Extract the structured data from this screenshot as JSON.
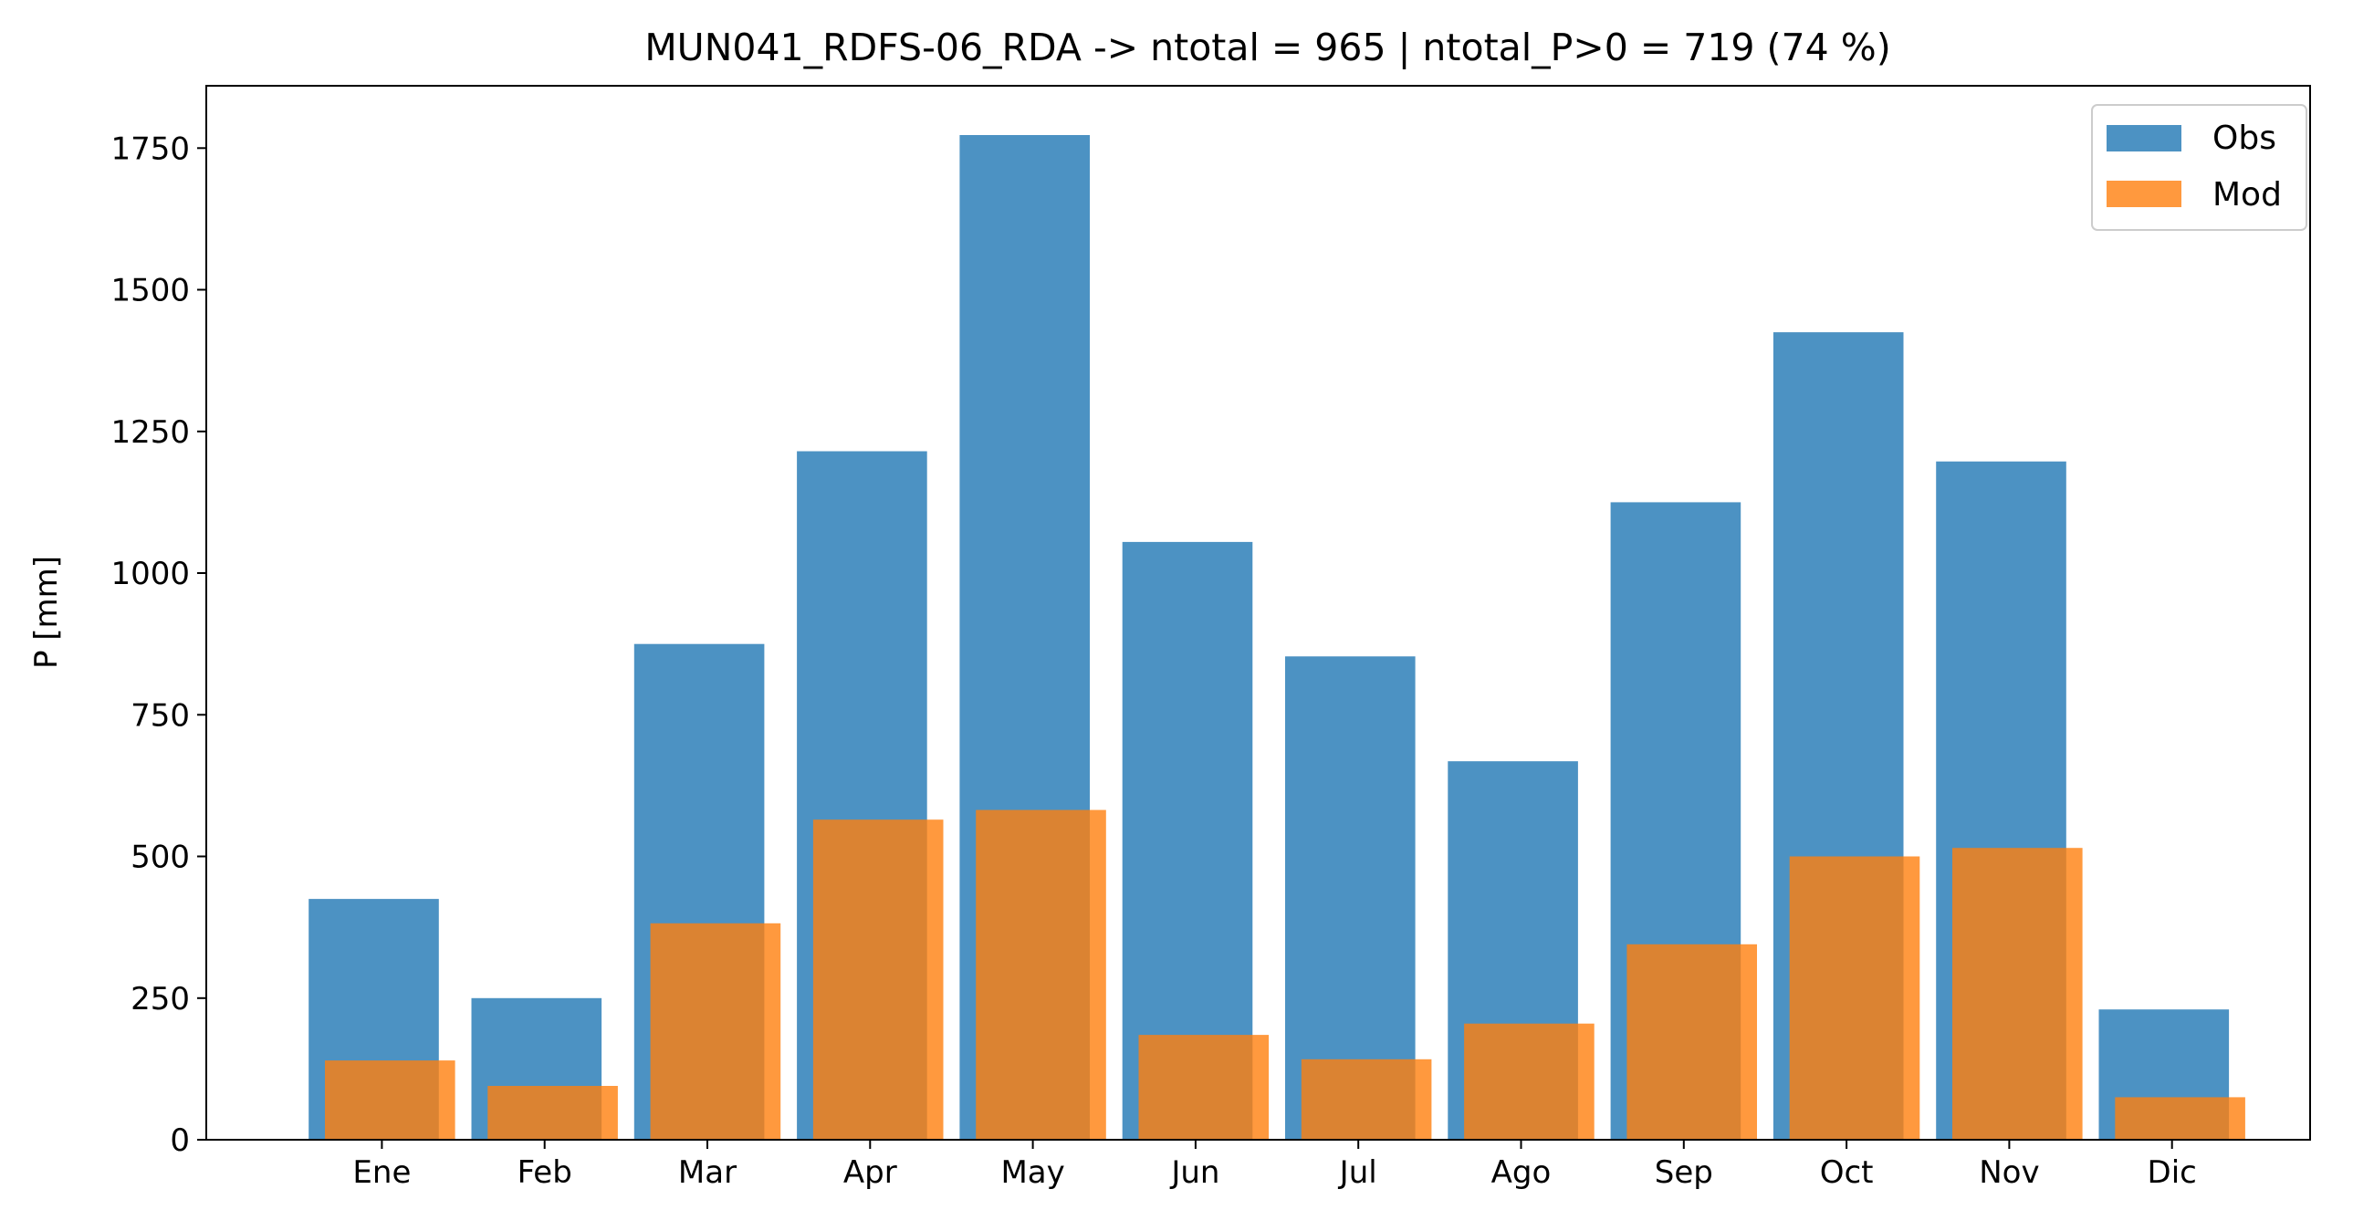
{
  "chart_data": {
    "type": "bar",
    "title": "MUN041_RDFS-06_RDA -> ntotal = 965 | ntotal_P>0 = 719 (74 %)",
    "xlabel": "",
    "ylabel": "P [mm]",
    "ylim": [
      0,
      1860
    ],
    "yticks": [
      0,
      250,
      500,
      750,
      1000,
      1250,
      1500,
      1750
    ],
    "grid": false,
    "legend_position": "top-right",
    "categories": [
      "Ene",
      "Feb",
      "Mar",
      "Apr",
      "May",
      "Jun",
      "Jul",
      "Ago",
      "Sep",
      "Oct",
      "Nov",
      "Dic"
    ],
    "series": [
      {
        "name": "Obs",
        "color": "#1f77b4",
        "values": [
          425,
          250,
          875,
          1215,
          1773,
          1055,
          853,
          668,
          1125,
          1425,
          1197,
          230
        ]
      },
      {
        "name": "Mod",
        "color": "#ff7f0e",
        "values": [
          140,
          95,
          382,
          565,
          582,
          185,
          142,
          205,
          345,
          500,
          515,
          75
        ]
      }
    ]
  }
}
